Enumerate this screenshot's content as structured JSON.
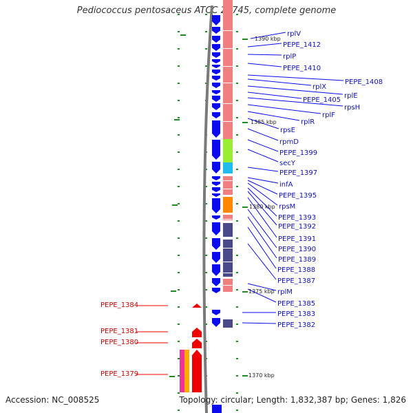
{
  "title": "Pediococcus pentosaceus ATCC 25745, complete genome",
  "accession": "Accession: NC_008525",
  "topology": "Topology: circular; Length: 1,832,387 bp; Genes: 1,826",
  "colors": {
    "gene_forward": "#0a0aee",
    "gene_reverse": "#ee0000",
    "label_forward": "#1010b0",
    "label_reverse": "#c80000",
    "backbone": "#7a7a7a",
    "tick": "#1f8a1f",
    "cog_default": "#f08080",
    "cog_green": "#99ee33",
    "cog_cyan": "#22bbee",
    "cog_orange": "#ff8800",
    "cog_purple": "#4a4a8a",
    "cog_magenta": "#ee3399",
    "cog_orange_light": "#ffaa00"
  },
  "scale_labels": [
    {
      "id": "1390",
      "text": "1390 kbp"
    },
    {
      "id": "1385",
      "text": "1385 kbp"
    },
    {
      "id": "1380",
      "text": "1380 kbp"
    },
    {
      "id": "1375",
      "text": "1375 kbp"
    },
    {
      "id": "1370",
      "text": "1370 kbp"
    }
  ],
  "forward_genes": [
    {
      "label": "rplV"
    },
    {
      "label": "PEPE_1412"
    },
    {
      "label": "rplP"
    },
    {
      "label": "PEPE_1410"
    },
    {
      "label": "PEPE_1408"
    },
    {
      "label": "rplX"
    },
    {
      "label": "rplE"
    },
    {
      "label": "PEPE_1405"
    },
    {
      "label": "rpsH"
    },
    {
      "label": "rplF"
    },
    {
      "label": "rplR"
    },
    {
      "label": "rpsE"
    },
    {
      "label": "rpmD"
    },
    {
      "label": "PEPE_1399"
    },
    {
      "label": "secY"
    },
    {
      "label": "PEPE_1397"
    },
    {
      "label": "infA"
    },
    {
      "label": "PEPE_1395"
    },
    {
      "label": "rpsM"
    },
    {
      "label": "PEPE_1393"
    },
    {
      "label": "PEPE_1392"
    },
    {
      "label": "PEPE_1391"
    },
    {
      "label": "PEPE_1390"
    },
    {
      "label": "PEPE_1389"
    },
    {
      "label": "PEPE_1388"
    },
    {
      "label": "PEPE_1387"
    },
    {
      "label": "rplM"
    },
    {
      "label": "PEPE_1385"
    },
    {
      "label": "PEPE_1383"
    },
    {
      "label": "PEPE_1382"
    }
  ],
  "reverse_genes": [
    {
      "label": "PEPE_1384"
    },
    {
      "label": "PEPE_1381"
    },
    {
      "label": "PEPE_1380"
    },
    {
      "label": "PEPE_1379"
    }
  ]
}
